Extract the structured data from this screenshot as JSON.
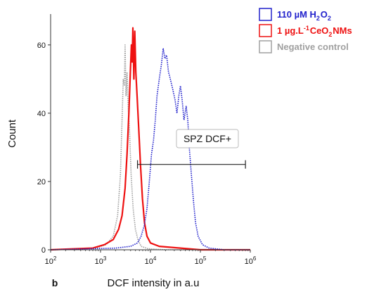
{
  "panel_label": "b",
  "chart_data": {
    "type": "line",
    "xlabel": "DCF intensity in a.u",
    "ylabel": "Count",
    "xscale": "log",
    "xlim": [
      100,
      1000000
    ],
    "ylim": [
      0,
      68
    ],
    "x_ticks": [
      {
        "value": 100,
        "base": "10",
        "exp": "2"
      },
      {
        "value": 1000,
        "base": "10",
        "exp": "3"
      },
      {
        "value": 10000,
        "base": "10",
        "exp": "4"
      },
      {
        "value": 100000,
        "base": "10",
        "exp": "5"
      },
      {
        "value": 1000000,
        "base": "10",
        "exp": "6"
      }
    ],
    "y_ticks": [
      0,
      20,
      40,
      60
    ],
    "legend_position": "top-right",
    "legend": [
      {
        "series": "h2o2",
        "text": "110 µM H",
        "sub": "2",
        "text2": "O",
        "sub2": "2",
        "text3": "",
        "sup": ""
      },
      {
        "series": "ceo2",
        "text": "1 µg.L",
        "sup": "-1",
        "text2": " CeO",
        "sub2": "2",
        "text3": "NMs",
        "sub": ""
      },
      {
        "series": "neg",
        "text": "Negative control",
        "sub": "",
        "text2": "",
        "sub2": "",
        "text3": "",
        "sup": ""
      }
    ],
    "gate": {
      "label": "SPZ DCF+",
      "x_start": 5500,
      "x_end": 800000,
      "y": 25
    },
    "series": [
      {
        "key": "neg",
        "name": "Negative control",
        "color": "#a0a0a0",
        "style": "dotted",
        "points": [
          [
            100,
            0
          ],
          [
            800,
            0.5
          ],
          [
            1300,
            1.5
          ],
          [
            1800,
            4
          ],
          [
            2200,
            10
          ],
          [
            2500,
            22
          ],
          [
            2700,
            38
          ],
          [
            2850,
            50
          ],
          [
            3000,
            48
          ],
          [
            3100,
            60
          ],
          [
            3250,
            45
          ],
          [
            3400,
            52
          ],
          [
            3600,
            41
          ],
          [
            3800,
            35
          ],
          [
            4100,
            22
          ],
          [
            4500,
            12
          ],
          [
            5000,
            6
          ],
          [
            5600,
            3
          ],
          [
            6500,
            1
          ],
          [
            9000,
            0.3
          ],
          [
            20000,
            0
          ],
          [
            1000000,
            0
          ]
        ]
      },
      {
        "key": "ceo2",
        "name": "1 µg.L-1 CeO2NMs",
        "color": "#ee1111",
        "style": "solid",
        "points": [
          [
            100,
            0
          ],
          [
            700,
            0.5
          ],
          [
            1200,
            1.5
          ],
          [
            1800,
            3
          ],
          [
            2300,
            6
          ],
          [
            2700,
            10
          ],
          [
            3100,
            18
          ],
          [
            3400,
            28
          ],
          [
            3700,
            40
          ],
          [
            3950,
            52
          ],
          [
            4150,
            60
          ],
          [
            4300,
            55
          ],
          [
            4450,
            65
          ],
          [
            4650,
            50
          ],
          [
            4850,
            64
          ],
          [
            5100,
            52
          ],
          [
            5400,
            45
          ],
          [
            5800,
            36
          ],
          [
            6300,
            25
          ],
          [
            6900,
            15
          ],
          [
            7600,
            8
          ],
          [
            8500,
            4
          ],
          [
            10000,
            2
          ],
          [
            15000,
            1
          ],
          [
            40000,
            0.5
          ],
          [
            100000,
            0
          ],
          [
            1000000,
            0
          ]
        ]
      },
      {
        "key": "h2o2",
        "name": "110 µM H2O2",
        "color": "#2222cc",
        "style": "dotted",
        "points": [
          [
            100,
            0
          ],
          [
            2000,
            0.5
          ],
          [
            4000,
            1
          ],
          [
            5500,
            2
          ],
          [
            6500,
            4
          ],
          [
            7500,
            7
          ],
          [
            8500,
            12
          ],
          [
            9500,
            20
          ],
          [
            10500,
            28
          ],
          [
            11500,
            32
          ],
          [
            12500,
            38
          ],
          [
            13500,
            45
          ],
          [
            15000,
            50
          ],
          [
            16500,
            54
          ],
          [
            18000,
            59
          ],
          [
            19500,
            56
          ],
          [
            21000,
            57
          ],
          [
            23000,
            52
          ],
          [
            25000,
            50
          ],
          [
            28000,
            47
          ],
          [
            31000,
            44
          ],
          [
            34000,
            40
          ],
          [
            37000,
            45
          ],
          [
            40000,
            48
          ],
          [
            43000,
            44
          ],
          [
            47000,
            38
          ],
          [
            52000,
            42
          ],
          [
            56000,
            38
          ],
          [
            60000,
            30
          ],
          [
            66000,
            22
          ],
          [
            73000,
            14
          ],
          [
            80000,
            8
          ],
          [
            90000,
            4
          ],
          [
            110000,
            1.5
          ],
          [
            150000,
            0.5
          ],
          [
            300000,
            0
          ],
          [
            1000000,
            0
          ]
        ]
      }
    ]
  }
}
